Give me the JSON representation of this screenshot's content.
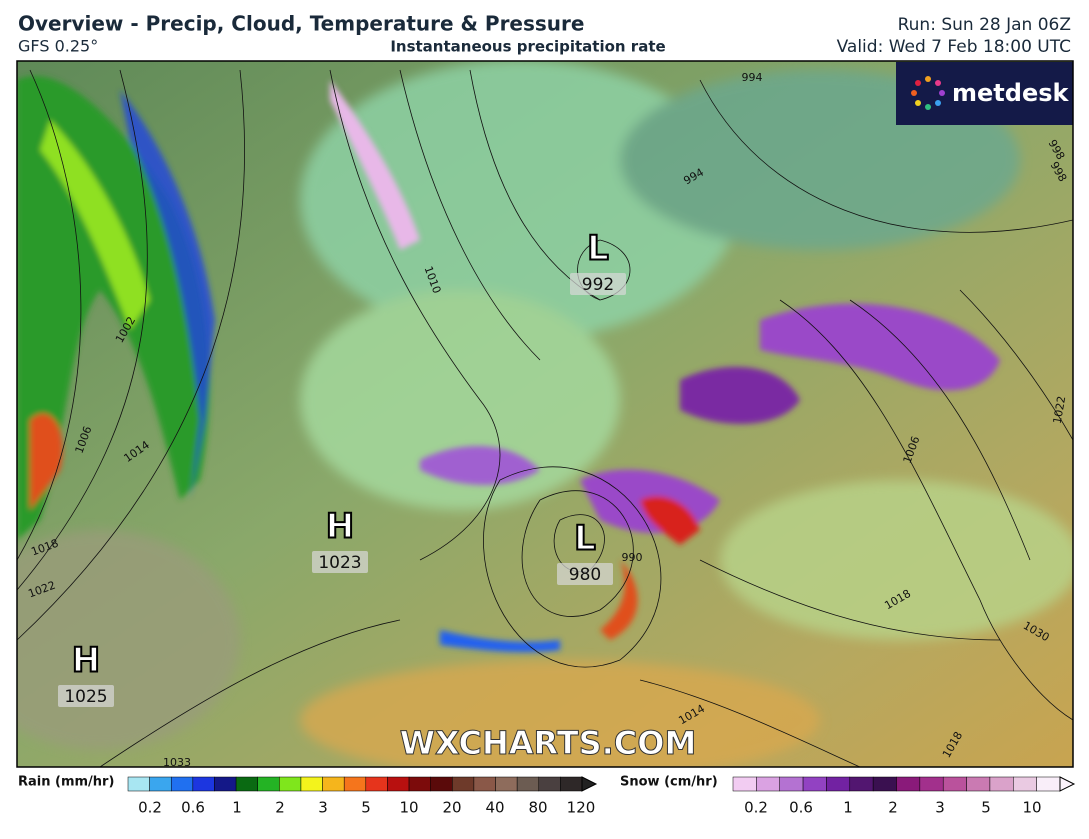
{
  "header": {
    "title": "Overview - Precip, Cloud, Temperature & Pressure",
    "model": "GFS 0.25°",
    "subtitle": "Instantaneous precipitation rate",
    "run": "Run: Sun 28 Jan 06Z",
    "valid": "Valid: Wed 7 Feb 18:00 UTC"
  },
  "logo": "metdesk",
  "watermark": "WXCHARTS.COM",
  "pressure_centers": [
    {
      "letter": "L",
      "value": 992
    },
    {
      "letter": "L",
      "value": 980
    },
    {
      "letter": "H",
      "value": 1023
    },
    {
      "letter": "H",
      "value": 1025
    }
  ],
  "isobar_labels": [
    "994",
    "994",
    "998",
    "1002",
    "1010",
    "1014",
    "1018",
    "1022",
    "1006",
    "990",
    "1018",
    "1030",
    "1014",
    "1022",
    "1006",
    "998",
    "1018",
    "1033"
  ],
  "legend": {
    "rain": {
      "label": "Rain (mm/hr)",
      "ticks": [
        0.2,
        0.6,
        1,
        2,
        3,
        5,
        10,
        20,
        40,
        80,
        120
      ],
      "colors": [
        "#a8e6f2",
        "#3aa6ee",
        "#2070f0",
        "#1c36e0",
        "#141888",
        "#0a6a12",
        "#24b324",
        "#7fe61c",
        "#f3f31c",
        "#f5b51c",
        "#f5751c",
        "#e6341c",
        "#b8100f",
        "#7c0b0b",
        "#5a0a0a",
        "#6e3a2a",
        "#8a5848",
        "#8e6c5c",
        "#6c5c52",
        "#4a4040",
        "#2e2828"
      ]
    },
    "snow": {
      "label": "Snow (cm/hr)",
      "ticks": [
        0.2,
        0.6,
        1,
        2,
        3,
        5,
        10
      ],
      "colors": [
        "#f2ccf2",
        "#daa2e2",
        "#b472d2",
        "#9242c2",
        "#7222a2",
        "#521670",
        "#3a1050",
        "#8a1a7a",
        "#a2308c",
        "#ba529c",
        "#ca7ab2",
        "#daa2ca",
        "#eacae2",
        "#f9eef9"
      ]
    }
  }
}
